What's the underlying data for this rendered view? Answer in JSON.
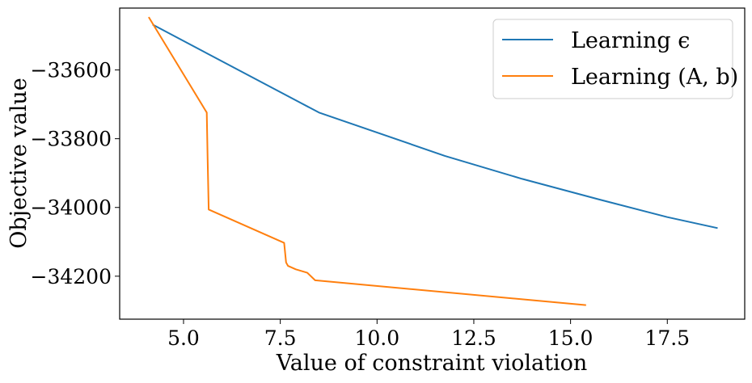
{
  "chart_data": {
    "type": "line",
    "title": "",
    "xlabel": "Value of constraint violation",
    "ylabel": "Objective value",
    "xlim": [
      3.35,
      19.5
    ],
    "ylim": [
      -34325,
      -33420
    ],
    "xticks": [
      5.0,
      7.5,
      10.0,
      12.5,
      15.0,
      17.5
    ],
    "xtick_labels": [
      "5.0",
      "7.5",
      "10.0",
      "12.5",
      "15.0",
      "17.5"
    ],
    "yticks": [
      -33600,
      -33800,
      -34000,
      -34200
    ],
    "ytick_labels": [
      "−33600",
      "−33800",
      "−34000",
      "−34200"
    ],
    "grid": false,
    "legend_position": "top-right",
    "series": [
      {
        "name": "Learning ϵ",
        "color": "#1f77b4",
        "x": [
          4.2,
          8.5,
          11.75,
          13.75,
          15.75,
          17.5,
          18.8
        ],
        "y": [
          -33468,
          -33724,
          -33850,
          -33917,
          -33977,
          -34028,
          -34060
        ]
      },
      {
        "name": "Learning (A, b)",
        "color": "#ff7f0e",
        "x": [
          4.1,
          5.6,
          5.62,
          5.65,
          7.6,
          7.65,
          7.7,
          7.9,
          8.2,
          8.4,
          15.4
        ],
        "y": [
          -33446,
          -33724,
          -33850,
          -34006,
          -34103,
          -34160,
          -34170,
          -34180,
          -34190,
          -34212,
          -34284
        ]
      }
    ]
  }
}
